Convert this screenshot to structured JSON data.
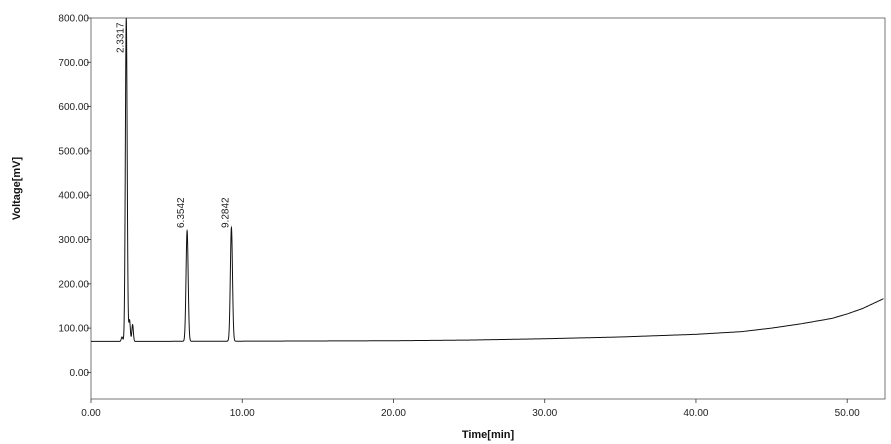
{
  "chart_data": {
    "type": "line",
    "title": "",
    "xlabel": "Time[min]",
    "ylabel": "Voltage[mV]",
    "xlim": [
      0,
      52.5
    ],
    "ylim": [
      -60,
      800
    ],
    "x_ticks": [
      0,
      10,
      20,
      30,
      40,
      50
    ],
    "x_tick_labels": [
      "0.00",
      "10.00",
      "20.00",
      "30.00",
      "40.00",
      "50.00"
    ],
    "y_ticks": [
      0,
      100,
      200,
      300,
      400,
      500,
      600,
      700,
      800
    ],
    "y_tick_labels": [
      "0.00",
      "100.00",
      "200.00",
      "300.00",
      "400.00",
      "500.00",
      "600.00",
      "700.00",
      "800.00"
    ],
    "grid": false,
    "series": [
      {
        "baseline": [
          [
            0,
            70
          ],
          [
            2.0,
            70
          ],
          [
            10,
            70.5
          ],
          [
            20,
            71.5
          ],
          [
            25,
            73
          ],
          [
            30,
            76
          ],
          [
            35,
            80
          ],
          [
            40,
            86
          ],
          [
            43,
            92
          ],
          [
            45,
            100
          ],
          [
            47,
            110
          ],
          [
            49,
            122
          ],
          [
            50,
            132
          ],
          [
            51,
            144
          ],
          [
            52,
            160
          ],
          [
            52.5,
            168
          ]
        ],
        "peaks": [
          {
            "x": 2.05,
            "height": 80,
            "width": 0.05
          },
          {
            "x": 2.3317,
            "height": 800,
            "width": 0.06
          },
          {
            "x": 2.55,
            "height": 118,
            "width": 0.05
          },
          {
            "x": 2.75,
            "height": 108,
            "width": 0.05
          },
          {
            "x": 6.3542,
            "height": 320,
            "width": 0.07
          },
          {
            "x": 9.2842,
            "height": 327,
            "width": 0.07
          }
        ]
      }
    ],
    "peak_labels": [
      {
        "x": 2.3317,
        "y": 790,
        "text": "2.3317"
      },
      {
        "x": 6.3542,
        "y": 395,
        "text": "6.3542"
      },
      {
        "x": 9.2842,
        "y": 395,
        "text": "9.2842"
      }
    ]
  }
}
